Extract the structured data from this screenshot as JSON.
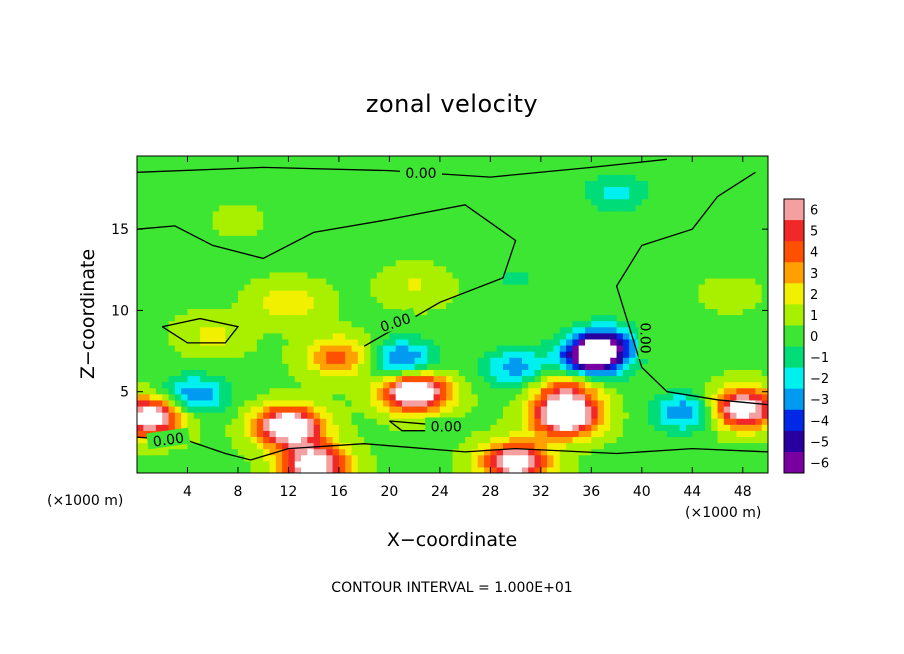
{
  "chart_data": {
    "type": "heatmap",
    "title": "zonal velocity",
    "xlabel": "X−coordinate",
    "ylabel": "Z−coordinate",
    "x_units": "(×1000 m)",
    "y_units": "(×1000 m)",
    "xlim": [
      0,
      50
    ],
    "ylim": [
      0,
      19.5
    ],
    "x_ticks": [
      4,
      8,
      12,
      16,
      20,
      24,
      28,
      32,
      36,
      40,
      44,
      48
    ],
    "y_ticks": [
      5,
      10,
      15
    ],
    "colorbar": {
      "min": -6,
      "max": 6,
      "ticks": [
        6,
        5,
        4,
        3,
        2,
        1,
        0,
        -1,
        -2,
        -3,
        -4,
        -5,
        -6
      ],
      "tick_labels": [
        "6",
        "5",
        "4",
        "3",
        "2",
        "1",
        "0",
        "−1",
        "−2",
        "−3",
        "−4",
        "−5",
        "−6"
      ]
    },
    "contour_labels": [
      "0.00",
      "0.00",
      "0.00",
      "0.00",
      "0.00"
    ],
    "contour_interval_text": "CONTOUR INTERVAL = 1.000E+01",
    "features": [
      {
        "x": 38,
        "z": 17.3,
        "value": -1.8
      },
      {
        "x": 37,
        "z": 8.0,
        "value": -4.5
      },
      {
        "x": 36,
        "z": 7.0,
        "value": -6.5
      },
      {
        "x": 30,
        "z": 6.5,
        "value": -3.0
      },
      {
        "x": 21,
        "z": 7.0,
        "value": -4.0
      },
      {
        "x": 4.5,
        "z": 4.8,
        "value": -3.5
      },
      {
        "x": 43.5,
        "z": 3.8,
        "value": -3.5
      },
      {
        "x": 16,
        "z": 7.2,
        "value": 4.0
      },
      {
        "x": 12,
        "z": 2.9,
        "value": 9.0
      },
      {
        "x": 22,
        "z": 5.0,
        "value": 9.0
      },
      {
        "x": 34,
        "z": 3.5,
        "value": 9.0
      },
      {
        "x": 34,
        "z": 5.2,
        "value": 4.5
      },
      {
        "x": 48,
        "z": 4.0,
        "value": 8.0
      },
      {
        "x": 1,
        "z": 3.5,
        "value": 8.0
      },
      {
        "x": 14,
        "z": 0.6,
        "value": 8.0
      },
      {
        "x": 30,
        "z": 0.7,
        "value": 8.0
      },
      {
        "x": 12,
        "z": 10.5,
        "value": 2.5
      },
      {
        "x": 22,
        "z": 11.5,
        "value": 1.6
      },
      {
        "x": 6,
        "z": 8.5,
        "value": 1.8
      },
      {
        "x": 8,
        "z": 15.5,
        "value": 0.7
      },
      {
        "x": 30,
        "z": 12,
        "value": -0.6
      },
      {
        "x": 47,
        "z": 11,
        "value": 0.8
      }
    ]
  }
}
